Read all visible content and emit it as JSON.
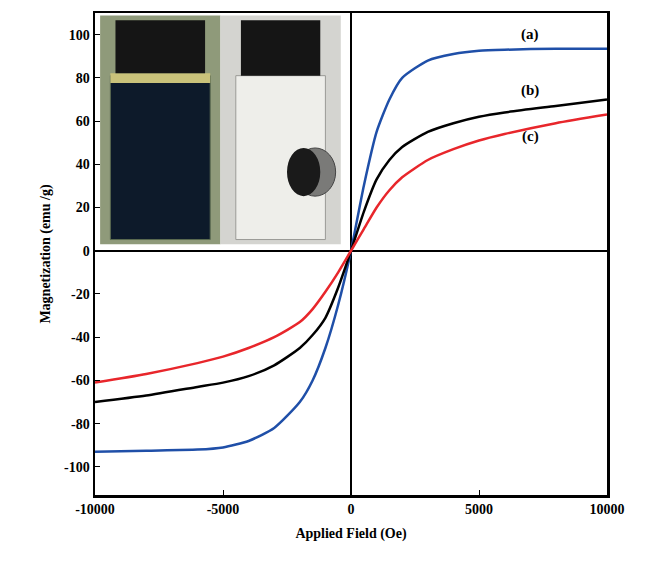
{
  "chart_data": {
    "type": "line",
    "x_label": "Applied Field (Oe)",
    "y_label": "Magnetization (emu /g)",
    "x": [
      -10000,
      -8000,
      -6000,
      -5000,
      -4000,
      -3000,
      -2000,
      -1500,
      -1000,
      -500,
      0,
      500,
      1000,
      1500,
      2000,
      3000,
      4000,
      5000,
      6000,
      8000,
      10000
    ],
    "series": [
      {
        "color": "#1f4fa8",
        "values": [
          -93,
          -92.5,
          -92,
          -91,
          -88,
          -82,
          -70,
          -60,
          -45,
          -25,
          0,
          30,
          55,
          70,
          80,
          88,
          91,
          92.5,
          93,
          93.5,
          93.5
        ]
      },
      {
        "color": "#000000",
        "values": [
          -70,
          -67,
          -63,
          -61,
          -58,
          -53,
          -45,
          -39,
          -31,
          -17,
          0,
          18,
          33,
          42,
          48,
          55,
          59,
          62,
          64,
          67,
          70
        ]
      },
      {
        "color": "#e8262b",
        "values": [
          -61,
          -57,
          -52,
          -49,
          -45,
          -40,
          -33,
          -27,
          -19,
          -10,
          0,
          10,
          20,
          28,
          34,
          42,
          47,
          51,
          54,
          59,
          63
        ]
      }
    ],
    "annotations": [
      {
        "text": "(a)",
        "x": 7000,
        "y": 100
      },
      {
        "text": "(b)",
        "x": 7000,
        "y": 74
      },
      {
        "text": "(c)",
        "x": 7000,
        "y": 53
      }
    ],
    "xlim": [
      -10000,
      10000
    ],
    "xticks": [
      -10000,
      -5000,
      0,
      5000,
      10000
    ],
    "ylim": [
      -113,
      110
    ],
    "yticks": [
      -100,
      -80,
      -60,
      -40,
      -20,
      0,
      20,
      40,
      60,
      80,
      100
    ],
    "grid": false
  }
}
